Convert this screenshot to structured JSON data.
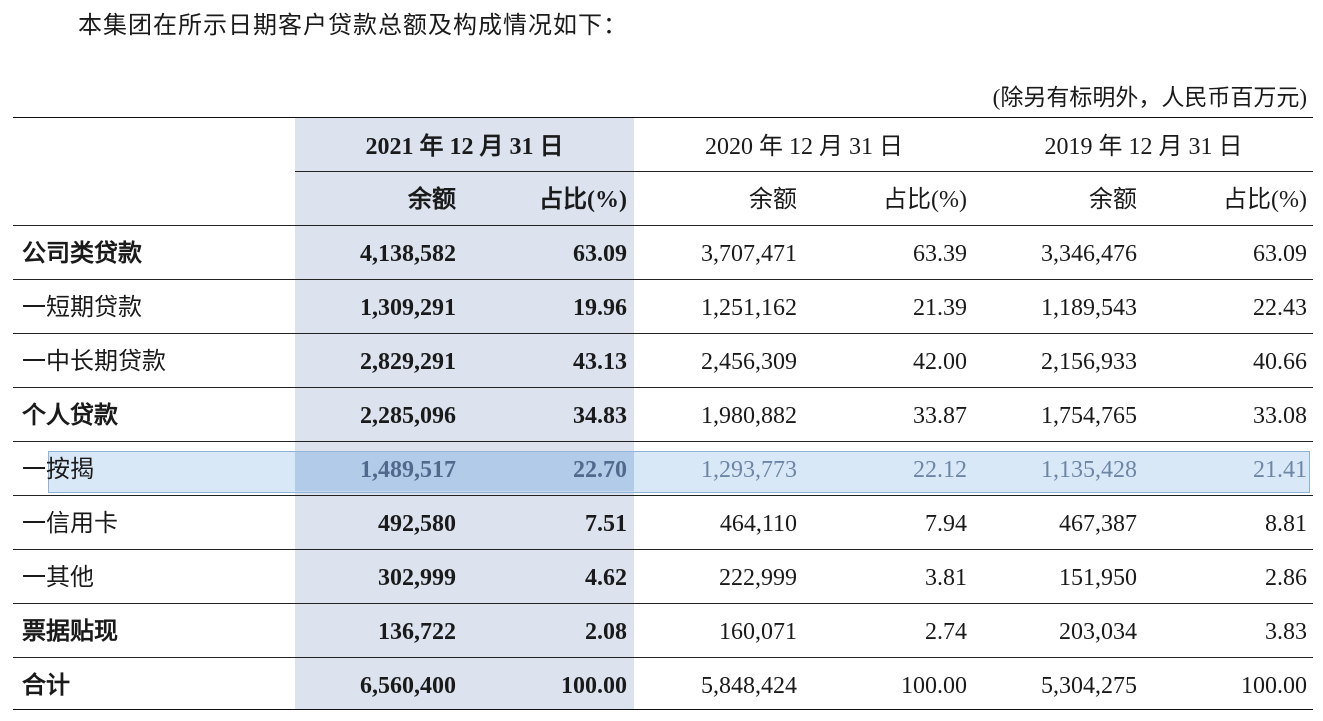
{
  "intro_text": "本集团在所示日期客户贷款总额及构成情况如下：",
  "unit_note": "(除另有标明外，人民币百万元)",
  "columns": {
    "years": [
      "2021 年 12 月 31 日",
      "2020 年 12 月 31 日",
      "2019 年 12 月 31 日"
    ],
    "amount_label": "余额",
    "ratio_label": "占比(%)"
  },
  "rows": [
    {
      "label": "公司类贷款",
      "bold": true,
      "values": [
        "4,138,582",
        "63.09",
        "3,707,471",
        "63.39",
        "3,346,476",
        "63.09"
      ]
    },
    {
      "label": "一短期贷款",
      "bold": false,
      "values": [
        "1,309,291",
        "19.96",
        "1,251,162",
        "21.39",
        "1,189,543",
        "22.43"
      ]
    },
    {
      "label": "一中长期贷款",
      "bold": false,
      "values": [
        "2,829,291",
        "43.13",
        "2,456,309",
        "42.00",
        "2,156,933",
        "40.66"
      ]
    },
    {
      "label": "个人贷款",
      "bold": true,
      "values": [
        "2,285,096",
        "34.83",
        "1,980,882",
        "33.87",
        "1,754,765",
        "33.08"
      ]
    },
    {
      "label": "一按揭",
      "bold": false,
      "selected": true,
      "values": [
        "1,489,517",
        "22.70",
        "1,293,773",
        "22.12",
        "1,135,428",
        "21.41"
      ]
    },
    {
      "label": "一信用卡",
      "bold": false,
      "values": [
        "492,580",
        "7.51",
        "464,110",
        "7.94",
        "467,387",
        "8.81"
      ]
    },
    {
      "label": "一其他",
      "bold": false,
      "values": [
        "302,999",
        "4.62",
        "222,999",
        "3.81",
        "151,950",
        "2.86"
      ]
    },
    {
      "label": "票据贴现",
      "bold": true,
      "values": [
        "136,722",
        "2.08",
        "160,071",
        "2.74",
        "203,034",
        "3.83"
      ]
    },
    {
      "label": "合计",
      "bold": true,
      "values": [
        "6,560,400",
        "100.00",
        "5,848,424",
        "100.00",
        "5,304,275",
        "100.00"
      ]
    }
  ]
}
